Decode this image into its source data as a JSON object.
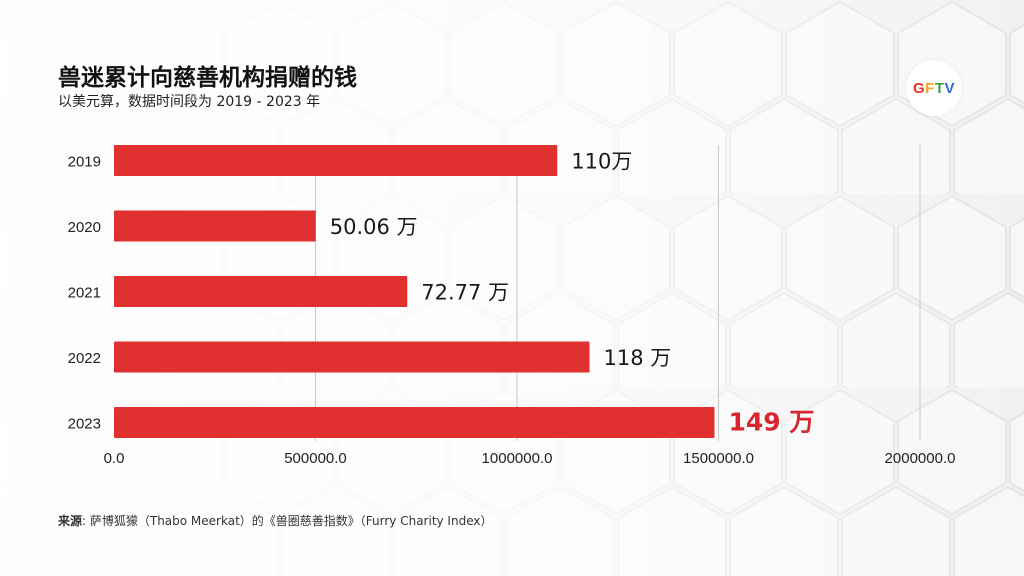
{
  "header": {
    "title": "兽迷累计向慈善机构捐赠的钱",
    "subtitle": "以美元算，数据时间段为 2019 - 2023 年"
  },
  "logo": {
    "letters": [
      "G",
      "F",
      "T",
      "V"
    ],
    "colors": [
      "#e8322b",
      "#f5a623",
      "#3aa33a",
      "#2d6bcf"
    ]
  },
  "colors": {
    "bar": "#e0302f",
    "highlight_label": "#d7262f",
    "label": "#1a1a1a",
    "grid": "#c8c8c8"
  },
  "chart_data": {
    "type": "bar",
    "orientation": "horizontal",
    "title": "兽迷累计向慈善机构捐赠的钱",
    "subtitle": "以美元算，数据时间段为 2019 - 2023 年",
    "categories": [
      "2019",
      "2020",
      "2021",
      "2022",
      "2023"
    ],
    "values": [
      1100000,
      500600,
      727700,
      1180000,
      1490000
    ],
    "data_labels": [
      "110万",
      "50.06 万",
      "72.77 万",
      "118 万",
      "149 万"
    ],
    "highlight_index": 4,
    "xlim": [
      0,
      2000000
    ],
    "xticks": [
      0,
      500000,
      1000000,
      1500000,
      2000000
    ],
    "xtick_labels": [
      "0.0",
      "500000.0",
      "1000000.0",
      "1500000.0",
      "2000000.0"
    ],
    "xlabel": "",
    "ylabel": "",
    "grid": true
  },
  "footer": {
    "source_label": "来源",
    "source_text": ": 萨博狐獴（Thabo Meerkat）的《兽圈慈善指数》（Furry Charity Index）"
  }
}
